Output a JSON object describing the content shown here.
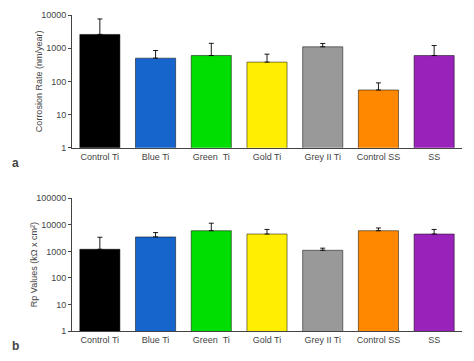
{
  "chart_data": [
    {
      "type": "bar",
      "categories": [
        "Control Ti",
        "Blue Ti",
        "Green  Ti",
        "Gold Ti",
        "Grey II Ti",
        "Control SS",
        "SS"
      ],
      "values": [
        2600,
        500,
        600,
        380,
        1100,
        55,
        600
      ],
      "errors_up": [
        5000,
        350,
        800,
        280,
        280,
        35,
        600
      ],
      "colors": [
        "#000000",
        "#1565cc",
        "#00dd00",
        "#ffee00",
        "#999999",
        "#ff8800",
        "#9922bb"
      ],
      "ylabel": "Corrosion Rate (nm/year)",
      "ylim": [
        1,
        10000
      ],
      "yticks": [
        1,
        10,
        100,
        1000,
        10000
      ],
      "log": "y",
      "grid": false,
      "annotations": [
        "a"
      ]
    },
    {
      "type": "bar",
      "categories": [
        "Control Ti",
        "Blue Ti",
        "Green  Ti",
        "Gold Ti",
        "Grey II Ti",
        "Control SS",
        "SS"
      ],
      "values": [
        1200,
        3500,
        6000,
        4500,
        1100,
        6000,
        4500
      ],
      "errors_up": [
        2200,
        1600,
        5500,
        2200,
        220,
        1600,
        2200
      ],
      "colors": [
        "#000000",
        "#1565cc",
        "#00dd00",
        "#ffee00",
        "#999999",
        "#ff8800",
        "#9922bb"
      ],
      "ylabel": "Rp Values (kΩ x cm²)",
      "ylim": [
        1,
        100000
      ],
      "yticks": [
        1,
        10,
        100,
        1000,
        10000,
        100000
      ],
      "log": "y",
      "grid": false,
      "annotations": [
        "b"
      ]
    }
  ]
}
